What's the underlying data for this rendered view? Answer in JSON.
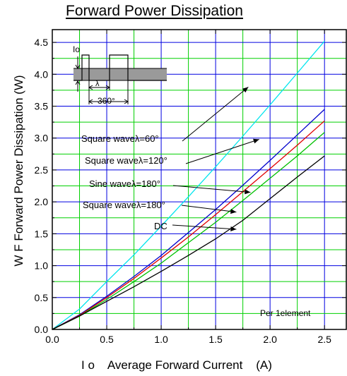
{
  "chart_data": {
    "type": "line",
    "title": "Forward Power Dissipation",
    "xlabel": "I o    Average Forward Current    (A)",
    "ylabel": "W F    Forward Power Dissipation  (W)",
    "xlim": [
      0,
      2.7
    ],
    "ylim": [
      0,
      4.7
    ],
    "x_ticks": [
      "0.0",
      "0.5",
      "1.0",
      "1.5",
      "2.0",
      "2.5"
    ],
    "y_ticks": [
      "0.0",
      "0.5",
      "1.0",
      "1.5",
      "2.0",
      "2.5",
      "3.0",
      "3.5",
      "4.0",
      "4.5"
    ],
    "grid": true,
    "colors": {
      "grid_yellow": "#00d000",
      "grid_blue": "#0000e0",
      "axis": "#000000"
    },
    "series": [
      {
        "name": "Square waveλ=60°",
        "color": "#00e5ee",
        "x": [
          0,
          0.25,
          0.5,
          0.75,
          1.0,
          1.25,
          1.5,
          1.75,
          2.0,
          2.25,
          2.5
        ],
        "y": [
          0,
          0.32,
          0.75,
          1.17,
          1.62,
          2.08,
          2.55,
          3.03,
          3.52,
          4.02,
          4.52
        ]
      },
      {
        "name": "Square waveλ=120°",
        "color": "#0000cc",
        "x": [
          0,
          0.25,
          0.5,
          0.75,
          1.0,
          1.25,
          1.5,
          1.75,
          2.0,
          2.25,
          2.5
        ],
        "y": [
          0,
          0.23,
          0.52,
          0.83,
          1.16,
          1.52,
          1.88,
          2.26,
          2.65,
          3.05,
          3.45
        ]
      },
      {
        "name": "Sine waveλ=180°",
        "color": "#e00000",
        "x": [
          0,
          0.25,
          0.5,
          0.75,
          1.0,
          1.25,
          1.5,
          1.75,
          2.0,
          2.25,
          2.5
        ],
        "y": [
          0,
          0.22,
          0.5,
          0.8,
          1.12,
          1.45,
          1.8,
          2.16,
          2.52,
          2.89,
          3.27
        ]
      },
      {
        "name": "Square waveλ=180°",
        "color": "#00c000",
        "x": [
          0,
          0.25,
          0.5,
          0.75,
          1.0,
          1.25,
          1.5,
          1.75,
          2.0,
          2.25,
          2.5
        ],
        "y": [
          0,
          0.21,
          0.47,
          0.75,
          1.04,
          1.36,
          1.68,
          2.02,
          2.37,
          2.72,
          3.09
        ]
      },
      {
        "name": "DC",
        "color": "#000000",
        "x": [
          0,
          0.25,
          0.5,
          0.75,
          1.0,
          1.25,
          1.5,
          1.75,
          2.0,
          2.25,
          2.5
        ],
        "y": [
          0,
          0.21,
          0.44,
          0.67,
          0.91,
          1.16,
          1.42,
          1.71,
          2.05,
          2.39,
          2.72
        ]
      }
    ],
    "annotations": [
      {
        "text": "Square waveλ=60°",
        "target_x": 1.8,
        "target_y": 3.8
      },
      {
        "text": "Square waveλ=120°",
        "target_x": 1.9,
        "target_y": 2.98
      },
      {
        "text": "Sine waveλ=180°",
        "target_x": 1.82,
        "target_y": 2.15
      },
      {
        "text": "Square waveλ=180°",
        "target_x": 1.69,
        "target_y": 1.84
      },
      {
        "text": "DC",
        "target_x": 1.69,
        "target_y": 1.57
      }
    ],
    "note": "Per 1element",
    "inset": {
      "io_label": "Io",
      "lambda_label": "λ",
      "period_label": "360°"
    }
  }
}
